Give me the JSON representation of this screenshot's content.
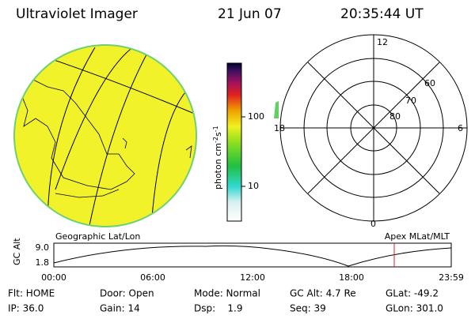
{
  "header": {
    "title": "Ultraviolet Imager",
    "date": "21 Jun 07",
    "time": "20:35:44 UT"
  },
  "colorbar": {
    "unit": "photon cm",
    "exp1": "-2",
    "unit2": "s",
    "exp2": "-1",
    "ticks": [
      "100",
      "10"
    ]
  },
  "polar": {
    "labels": {
      "top": "12",
      "left": "18",
      "right": "6",
      "bottom": "0"
    },
    "rings": [
      "60",
      "70",
      "80"
    ]
  },
  "timeline": {
    "left_label": "Geographic Lat/Lon",
    "right_label": "Apex MLat/MLT",
    "axis_title": "GC Alt",
    "yticks": [
      "9.0",
      "1.8"
    ],
    "xticks": [
      "00:00",
      "06:00",
      "12:00",
      "18:00",
      "23:59"
    ]
  },
  "info": {
    "rows": [
      [
        "Flt: HOME",
        "Door: Open",
        "Mode: Normal",
        "GC Alt: 4.7 Re",
        "GLat: -49.2"
      ],
      [
        "IP: 36.0",
        "Gain: 14",
        "Dsp:    1.9",
        "Seq: 39",
        "GLon: 301.0"
      ]
    ]
  }
}
